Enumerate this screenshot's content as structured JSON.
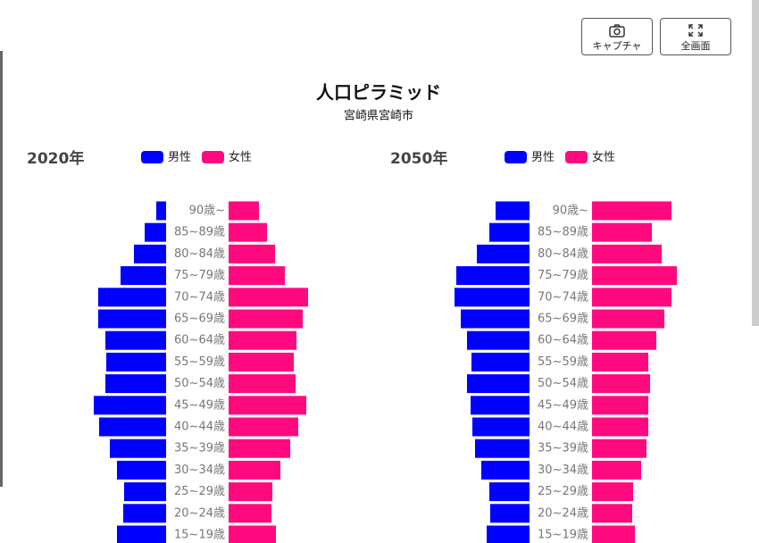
{
  "ui": {
    "buttons": [
      {
        "label": "キャプチャ"
      },
      {
        "label": "全画面"
      }
    ]
  },
  "header": {
    "title": "人口ピラミッド",
    "subtitle": "宮崎県宮崎市"
  },
  "chart_data": [
    {
      "type": "pyramid",
      "title": "2020年",
      "categories": [
        "90歳~",
        "85~89歳",
        "80~84歳",
        "75~79歳",
        "70~74歳",
        "65~69歳",
        "60~64歳",
        "55~59歳",
        "50~54歳",
        "45~49歳",
        "40~44歳",
        "35~39歳",
        "30~34歳",
        "25~29歳",
        "20~24歳",
        "15~19歳"
      ],
      "series": [
        {
          "name": "男性",
          "color": "#0000ff",
          "values": [
            2200,
            4800,
            7200,
            10200,
            15200,
            15200,
            13600,
            13400,
            13600,
            16200,
            15000,
            12600,
            11000,
            9400,
            9600,
            11000
          ]
        },
        {
          "name": "女性",
          "color": "#ff0a7e",
          "values": [
            6800,
            8600,
            10400,
            12600,
            17800,
            16600,
            15200,
            14600,
            15000,
            17400,
            15600,
            13800,
            11600,
            9800,
            9600,
            10600
          ]
        }
      ]
    },
    {
      "type": "pyramid",
      "title": "2050年",
      "categories": [
        "90歳~",
        "85~89歳",
        "80~84歳",
        "75~79歳",
        "70~74歳",
        "65~69歳",
        "60~64歳",
        "55~59歳",
        "50~54歳",
        "45~49歳",
        "40~44歳",
        "35~39歳",
        "30~34歳",
        "25~29歳",
        "20~24歳",
        "15~19歳"
      ],
      "series": [
        {
          "name": "男性",
          "color": "#0000ff",
          "values": [
            7600,
            9000,
            11800,
            16400,
            16800,
            15400,
            14000,
            13000,
            14000,
            13200,
            12800,
            12200,
            10800,
            9000,
            8800,
            9600
          ]
        },
        {
          "name": "女性",
          "color": "#ff0a7e",
          "values": [
            17800,
            13400,
            15600,
            19000,
            17800,
            16200,
            14400,
            12600,
            13000,
            12600,
            12600,
            12200,
            11000,
            9200,
            9000,
            9600
          ]
        }
      ]
    }
  ]
}
